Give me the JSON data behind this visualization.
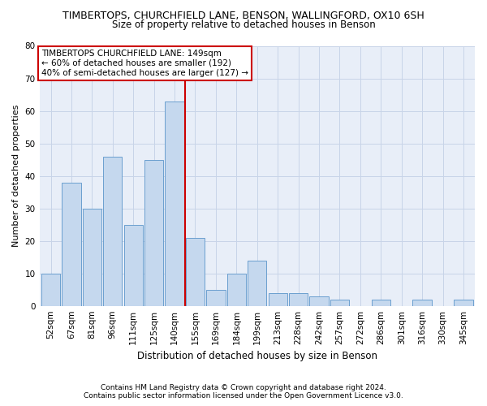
{
  "title": "TIMBERTOPS, CHURCHFIELD LANE, BENSON, WALLINGFORD, OX10 6SH",
  "subtitle": "Size of property relative to detached houses in Benson",
  "xlabel": "Distribution of detached houses by size in Benson",
  "ylabel": "Number of detached properties",
  "categories": [
    "52sqm",
    "67sqm",
    "81sqm",
    "96sqm",
    "111sqm",
    "125sqm",
    "140sqm",
    "155sqm",
    "169sqm",
    "184sqm",
    "199sqm",
    "213sqm",
    "228sqm",
    "242sqm",
    "257sqm",
    "272sqm",
    "286sqm",
    "301sqm",
    "316sqm",
    "330sqm",
    "345sqm"
  ],
  "values": [
    10,
    38,
    30,
    46,
    25,
    45,
    63,
    21,
    5,
    10,
    14,
    4,
    4,
    3,
    2,
    0,
    2,
    0,
    2,
    0,
    2
  ],
  "bar_color": "#c5d8ee",
  "bar_edge_color": "#6b9fcf",
  "line_color": "#cc0000",
  "annotation_box_color": "#ffffff",
  "annotation_box_edge": "#cc0000",
  "property_line_label": "TIMBERTOPS CHURCHFIELD LANE: 149sqm",
  "annotation_line1": "← 60% of detached houses are smaller (192)",
  "annotation_line2": "40% of semi-detached houses are larger (127) →",
  "ylim": [
    0,
    80
  ],
  "yticks": [
    0,
    10,
    20,
    30,
    40,
    50,
    60,
    70,
    80
  ],
  "footnote1": "Contains HM Land Registry data © Crown copyright and database right 2024.",
  "footnote2": "Contains public sector information licensed under the Open Government Licence v3.0.",
  "bg_color": "#e8eef8",
  "grid_color": "#c8d4e8",
  "title_fontsize": 9,
  "subtitle_fontsize": 8.5,
  "xlabel_fontsize": 8.5,
  "ylabel_fontsize": 8,
  "tick_fontsize": 7.5,
  "annotation_fontsize": 7.5,
  "footnote_fontsize": 6.5
}
